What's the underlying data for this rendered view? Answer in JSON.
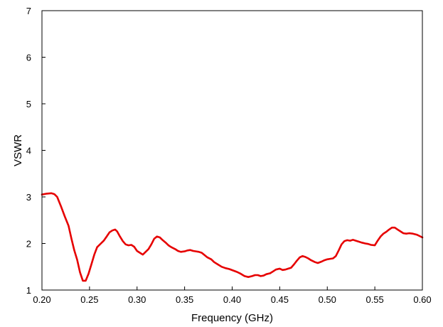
{
  "chart_data": {
    "type": "line",
    "title": "",
    "xlabel": "Frequency (GHz)",
    "ylabel": "VSWR",
    "xlim": [
      0.2,
      0.6
    ],
    "ylim": [
      1,
      7
    ],
    "xticks": [
      "0.20",
      "0.25",
      "0.30",
      "0.35",
      "0.40",
      "0.45",
      "0.50",
      "0.55",
      "0.60"
    ],
    "yticks": [
      "1",
      "2",
      "3",
      "4",
      "5",
      "6",
      "7"
    ],
    "grid": false,
    "legend": "none",
    "series": [
      {
        "color": "#e60000",
        "x": [
          0.2,
          0.205,
          0.21,
          0.213,
          0.216,
          0.22,
          0.224,
          0.228,
          0.231,
          0.234,
          0.237,
          0.24,
          0.243,
          0.246,
          0.249,
          0.252,
          0.255,
          0.258,
          0.262,
          0.265,
          0.268,
          0.271,
          0.274,
          0.277,
          0.279,
          0.282,
          0.285,
          0.288,
          0.291,
          0.294,
          0.297,
          0.3,
          0.303,
          0.306,
          0.309,
          0.312,
          0.315,
          0.318,
          0.321,
          0.324,
          0.327,
          0.33,
          0.333,
          0.336,
          0.34,
          0.343,
          0.346,
          0.35,
          0.353,
          0.356,
          0.359,
          0.362,
          0.365,
          0.368,
          0.371,
          0.374,
          0.378,
          0.381,
          0.385,
          0.389,
          0.393,
          0.397,
          0.401,
          0.405,
          0.409,
          0.413,
          0.417,
          0.421,
          0.424,
          0.427,
          0.43,
          0.433,
          0.436,
          0.44,
          0.443,
          0.446,
          0.45,
          0.453,
          0.456,
          0.459,
          0.462,
          0.465,
          0.468,
          0.471,
          0.474,
          0.477,
          0.48,
          0.483,
          0.487,
          0.49,
          0.494,
          0.497,
          0.5,
          0.503,
          0.506,
          0.509,
          0.512,
          0.515,
          0.518,
          0.521,
          0.524,
          0.527,
          0.53,
          0.533,
          0.536,
          0.54,
          0.543,
          0.546,
          0.55,
          0.553,
          0.556,
          0.559,
          0.562,
          0.565,
          0.568,
          0.571,
          0.574,
          0.577,
          0.58,
          0.583,
          0.586,
          0.59,
          0.594,
          0.597,
          0.6
        ],
        "y": [
          3.05,
          3.07,
          3.08,
          3.06,
          3.0,
          2.8,
          2.58,
          2.38,
          2.1,
          1.85,
          1.65,
          1.38,
          1.2,
          1.2,
          1.35,
          1.55,
          1.76,
          1.92,
          2.0,
          2.06,
          2.15,
          2.24,
          2.28,
          2.3,
          2.26,
          2.15,
          2.05,
          1.98,
          1.96,
          1.97,
          1.93,
          1.84,
          1.8,
          1.76,
          1.82,
          1.88,
          1.98,
          2.1,
          2.15,
          2.13,
          2.07,
          2.02,
          1.96,
          1.92,
          1.88,
          1.84,
          1.82,
          1.83,
          1.85,
          1.86,
          1.84,
          1.83,
          1.82,
          1.8,
          1.75,
          1.7,
          1.66,
          1.6,
          1.55,
          1.5,
          1.47,
          1.45,
          1.42,
          1.39,
          1.35,
          1.3,
          1.28,
          1.3,
          1.32,
          1.32,
          1.3,
          1.31,
          1.34,
          1.36,
          1.4,
          1.44,
          1.46,
          1.43,
          1.44,
          1.46,
          1.48,
          1.55,
          1.63,
          1.7,
          1.73,
          1.71,
          1.68,
          1.64,
          1.6,
          1.58,
          1.61,
          1.64,
          1.66,
          1.67,
          1.68,
          1.73,
          1.85,
          1.98,
          2.05,
          2.07,
          2.06,
          2.08,
          2.06,
          2.04,
          2.02,
          2.0,
          1.99,
          1.97,
          1.96,
          2.06,
          2.15,
          2.21,
          2.25,
          2.3,
          2.34,
          2.34,
          2.3,
          2.26,
          2.22,
          2.21,
          2.22,
          2.21,
          2.19,
          2.16,
          2.13
        ]
      }
    ]
  }
}
